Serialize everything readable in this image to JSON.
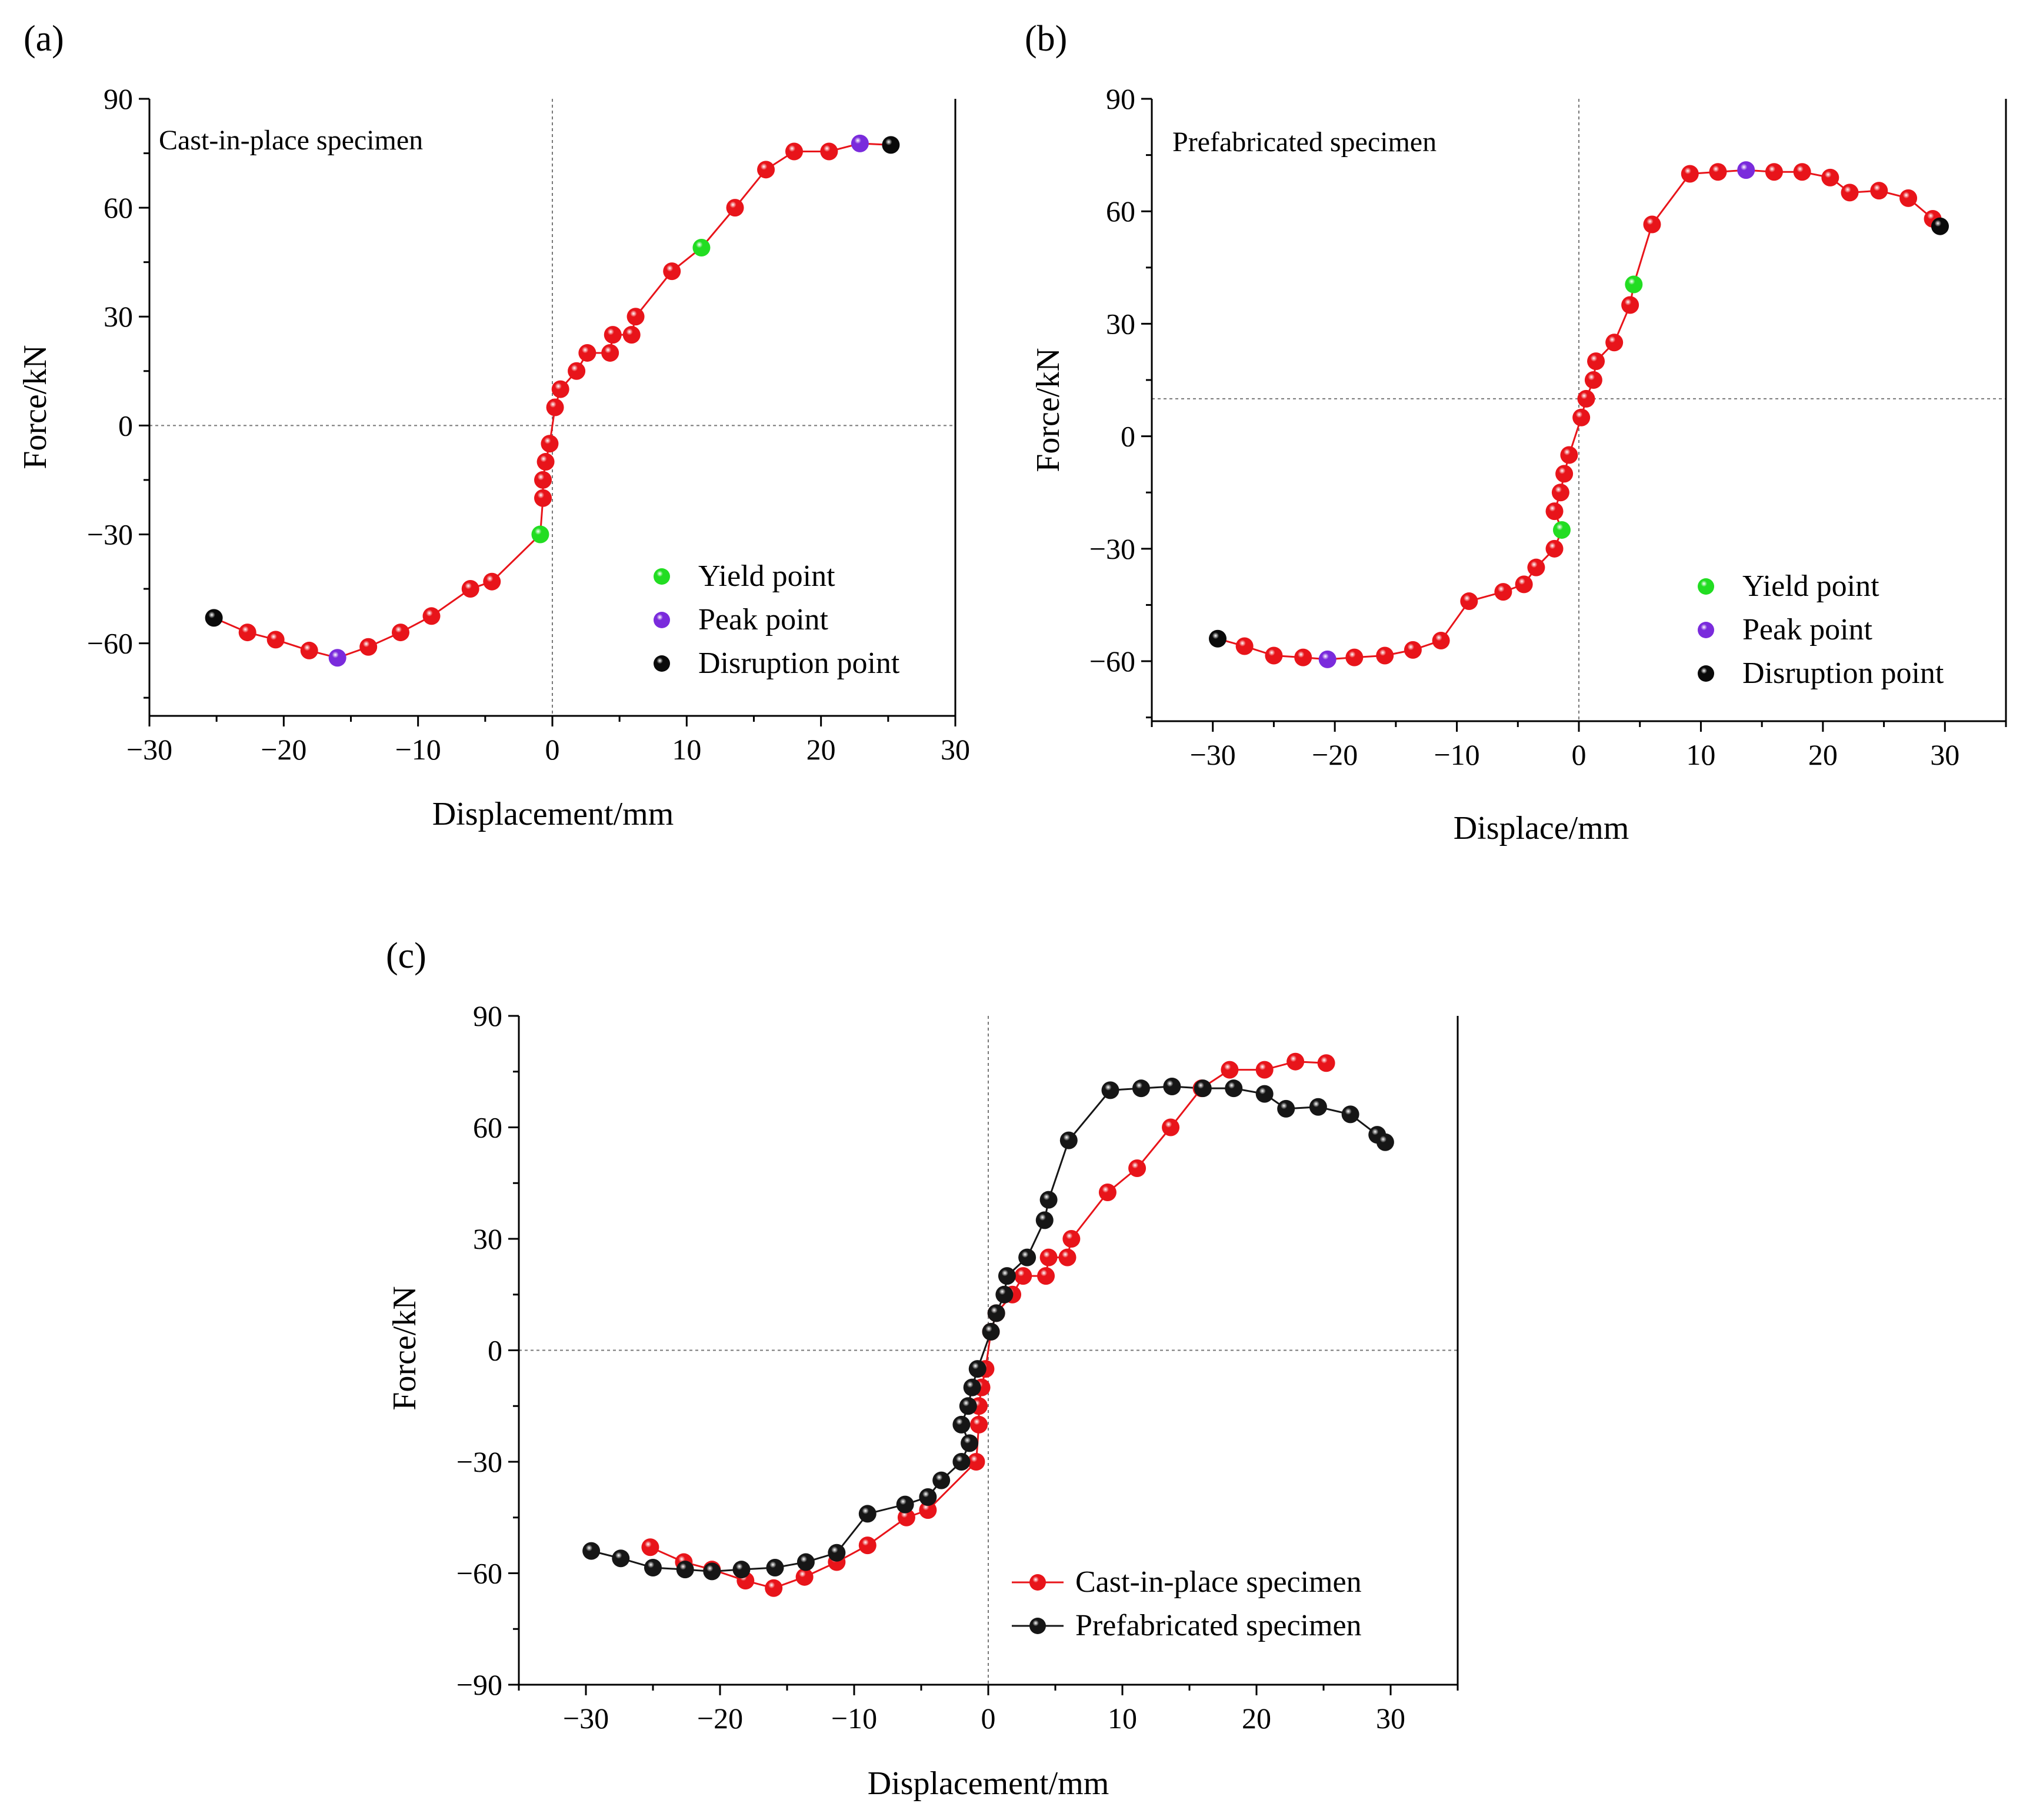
{
  "colors": {
    "cast": "#e8141a",
    "prefab": "#161616",
    "yield": "#22dd22",
    "peak": "#7a2bdc",
    "disruption": "#0a0a0a"
  },
  "chart_data": [
    {
      "id": "a",
      "type": "line",
      "panel_label": "(a)",
      "annotation": "Cast-in-place specimen",
      "xlabel": "Displacement/mm",
      "ylabel": "Force/kN",
      "xlim": [
        -30,
        30
      ],
      "ylim": [
        -80,
        90
      ],
      "xticks": [
        -30,
        -20,
        -10,
        0,
        10,
        20,
        30
      ],
      "xtick_labels": [
        "−30",
        "−20",
        "−10",
        "0",
        "10",
        "20",
        "30"
      ],
      "yticks": [
        90,
        60,
        30,
        0,
        -30,
        -60
      ],
      "ytick_labels": [
        "90",
        "60",
        "30",
        "0",
        "−30",
        "−60"
      ],
      "hline": 0,
      "vline": 0,
      "line_color": "#e8141a",
      "points": [
        [
          -25.2,
          -53,
          "disruption"
        ],
        [
          -22.7,
          -57,
          "normal"
        ],
        [
          -20.6,
          -59,
          "normal"
        ],
        [
          -18.1,
          -62,
          "normal"
        ],
        [
          -16.0,
          -64,
          "peak"
        ],
        [
          -13.7,
          -61,
          "normal"
        ],
        [
          -11.3,
          -57,
          "normal"
        ],
        [
          -9.0,
          -52.5,
          "normal"
        ],
        [
          -6.1,
          -45,
          "normal"
        ],
        [
          -4.5,
          -43,
          "normal"
        ],
        [
          -0.9,
          -30,
          "yield"
        ],
        [
          -0.7,
          -20,
          "normal"
        ],
        [
          -0.7,
          -15,
          "normal"
        ],
        [
          -0.5,
          -10,
          "normal"
        ],
        [
          -0.2,
          -5,
          "normal"
        ],
        [
          0.2,
          5,
          "normal"
        ],
        [
          0.6,
          10,
          "normal"
        ],
        [
          1.8,
          15,
          "normal"
        ],
        [
          2.6,
          20,
          "normal"
        ],
        [
          4.3,
          20,
          "normal"
        ],
        [
          4.5,
          25,
          "normal"
        ],
        [
          5.9,
          25,
          "normal"
        ],
        [
          6.2,
          30,
          "normal"
        ],
        [
          8.9,
          42.5,
          "normal"
        ],
        [
          11.1,
          49,
          "yield"
        ],
        [
          13.6,
          60,
          "normal"
        ],
        [
          15.9,
          70.5,
          "normal"
        ],
        [
          18.0,
          75.5,
          "normal"
        ],
        [
          20.6,
          75.5,
          "normal"
        ],
        [
          22.9,
          77.7,
          "peak"
        ],
        [
          25.2,
          77.3,
          "disruption"
        ]
      ],
      "legend": [
        {
          "label": "Yield point",
          "kind": "yield"
        },
        {
          "label": "Peak point",
          "kind": "peak"
        },
        {
          "label": "Disruption point",
          "kind": "disruption"
        }
      ]
    },
    {
      "id": "b",
      "type": "line",
      "panel_label": "(b)",
      "annotation": "Prefabricated specimen",
      "xlabel": "Displace/mm",
      "ylabel": "Force/kN",
      "xlim": [
        -35,
        35
      ],
      "ylim": [
        -76,
        90
      ],
      "xticks": [
        -30,
        -20,
        -10,
        0,
        10,
        20,
        30
      ],
      "xtick_labels": [
        "−30",
        "−20",
        "−10",
        "0",
        "10",
        "20",
        "30"
      ],
      "yticks": [
        90,
        60,
        30,
        0,
        -30,
        -60
      ],
      "ytick_labels": [
        "90",
        "60",
        "30",
        "0",
        "−30",
        "−60"
      ],
      "hline": 10,
      "vline": 0,
      "line_color": "#e8141a",
      "points": [
        [
          -29.6,
          -54,
          "disruption"
        ],
        [
          -27.4,
          -56,
          "normal"
        ],
        [
          -25.0,
          -58.5,
          "normal"
        ],
        [
          -22.6,
          -59,
          "normal"
        ],
        [
          -20.6,
          -59.5,
          "peak"
        ],
        [
          -18.4,
          -59,
          "normal"
        ],
        [
          -15.9,
          -58.5,
          "normal"
        ],
        [
          -13.6,
          -57,
          "normal"
        ],
        [
          -11.3,
          -54.5,
          "normal"
        ],
        [
          -9.0,
          -44,
          "normal"
        ],
        [
          -6.2,
          -41.5,
          "normal"
        ],
        [
          -4.5,
          -39.5,
          "normal"
        ],
        [
          -3.5,
          -35,
          "normal"
        ],
        [
          -2.0,
          -30,
          "normal"
        ],
        [
          -1.4,
          -25,
          "yield"
        ],
        [
          -2.0,
          -20,
          "normal"
        ],
        [
          -1.5,
          -15,
          "normal"
        ],
        [
          -1.2,
          -10,
          "normal"
        ],
        [
          -0.8,
          -5,
          "normal"
        ],
        [
          0.2,
          5,
          "normal"
        ],
        [
          0.6,
          10,
          "normal"
        ],
        [
          1.2,
          15,
          "normal"
        ],
        [
          1.4,
          20,
          "normal"
        ],
        [
          2.9,
          25,
          "normal"
        ],
        [
          4.2,
          35,
          "normal"
        ],
        [
          4.5,
          40.5,
          "yield"
        ],
        [
          6.0,
          56.5,
          "normal"
        ],
        [
          9.1,
          70,
          "normal"
        ],
        [
          11.4,
          70.5,
          "normal"
        ],
        [
          13.7,
          71,
          "peak"
        ],
        [
          16.0,
          70.5,
          "normal"
        ],
        [
          18.3,
          70.5,
          "normal"
        ],
        [
          20.6,
          69,
          "normal"
        ],
        [
          22.2,
          65,
          "normal"
        ],
        [
          24.6,
          65.5,
          "normal"
        ],
        [
          27.0,
          63.5,
          "normal"
        ],
        [
          29.0,
          58,
          "normal"
        ],
        [
          29.6,
          56,
          "disruption"
        ]
      ],
      "legend": [
        {
          "label": "Yield point",
          "kind": "yield"
        },
        {
          "label": "Peak point",
          "kind": "peak"
        },
        {
          "label": "Disruption point",
          "kind": "disruption"
        }
      ]
    },
    {
      "id": "c",
      "type": "line",
      "panel_label": "(c)",
      "annotation": "",
      "xlabel": "Displacement/mm",
      "ylabel": "Force/kN",
      "xlim": [
        -35,
        35
      ],
      "ylim": [
        -90,
        90
      ],
      "xticks": [
        -30,
        -20,
        -10,
        0,
        10,
        20,
        30
      ],
      "xtick_labels": [
        "−30",
        "−20",
        "−10",
        "0",
        "10",
        "20",
        "30"
      ],
      "yticks": [
        90,
        60,
        30,
        0,
        -30,
        -60,
        -90
      ],
      "ytick_labels": [
        "90",
        "60",
        "30",
        "0",
        "−30",
        "−60",
        "−90"
      ],
      "hline": 0,
      "vline": 0,
      "series": [
        {
          "name": "Cast-in-place specimen",
          "color": "#e8141a",
          "points": [
            [
              -25.2,
              -53
            ],
            [
              -22.7,
              -57
            ],
            [
              -20.6,
              -59
            ],
            [
              -18.1,
              -62
            ],
            [
              -16.0,
              -64
            ],
            [
              -13.7,
              -61
            ],
            [
              -11.3,
              -57
            ],
            [
              -9.0,
              -52.5
            ],
            [
              -6.1,
              -45
            ],
            [
              -4.5,
              -43
            ],
            [
              -0.9,
              -30
            ],
            [
              -0.7,
              -20
            ],
            [
              -0.7,
              -15
            ],
            [
              -0.5,
              -10
            ],
            [
              -0.2,
              -5
            ],
            [
              0.2,
              5
            ],
            [
              0.6,
              10
            ],
            [
              1.8,
              15
            ],
            [
              2.6,
              20
            ],
            [
              4.3,
              20
            ],
            [
              4.5,
              25
            ],
            [
              5.9,
              25
            ],
            [
              6.2,
              30
            ],
            [
              8.9,
              42.5
            ],
            [
              11.1,
              49
            ],
            [
              13.6,
              60
            ],
            [
              15.9,
              70.5
            ],
            [
              18.0,
              75.5
            ],
            [
              20.6,
              75.5
            ],
            [
              22.9,
              77.7
            ],
            [
              25.2,
              77.3
            ]
          ]
        },
        {
          "name": "Prefabricated specimen",
          "color": "#161616",
          "points": [
            [
              -29.6,
              -54
            ],
            [
              -27.4,
              -56
            ],
            [
              -25.0,
              -58.5
            ],
            [
              -22.6,
              -59
            ],
            [
              -20.6,
              -59.5
            ],
            [
              -18.4,
              -59
            ],
            [
              -15.9,
              -58.5
            ],
            [
              -13.6,
              -57
            ],
            [
              -11.3,
              -54.5
            ],
            [
              -9.0,
              -44
            ],
            [
              -6.2,
              -41.5
            ],
            [
              -4.5,
              -39.5
            ],
            [
              -3.5,
              -35
            ],
            [
              -2.0,
              -30
            ],
            [
              -1.4,
              -25
            ],
            [
              -2.0,
              -20
            ],
            [
              -1.5,
              -15
            ],
            [
              -1.2,
              -10
            ],
            [
              -0.8,
              -5
            ],
            [
              0.2,
              5
            ],
            [
              0.6,
              10
            ],
            [
              1.2,
              15
            ],
            [
              1.4,
              20
            ],
            [
              2.9,
              25
            ],
            [
              4.2,
              35
            ],
            [
              4.5,
              40.5
            ],
            [
              6.0,
              56.5
            ],
            [
              9.1,
              70
            ],
            [
              11.4,
              70.5
            ],
            [
              13.7,
              71
            ],
            [
              16.0,
              70.5
            ],
            [
              18.3,
              70.5
            ],
            [
              20.6,
              69
            ],
            [
              22.2,
              65
            ],
            [
              24.6,
              65.5
            ],
            [
              27.0,
              63.5
            ],
            [
              29.0,
              58
            ],
            [
              29.6,
              56
            ]
          ]
        }
      ]
    }
  ]
}
